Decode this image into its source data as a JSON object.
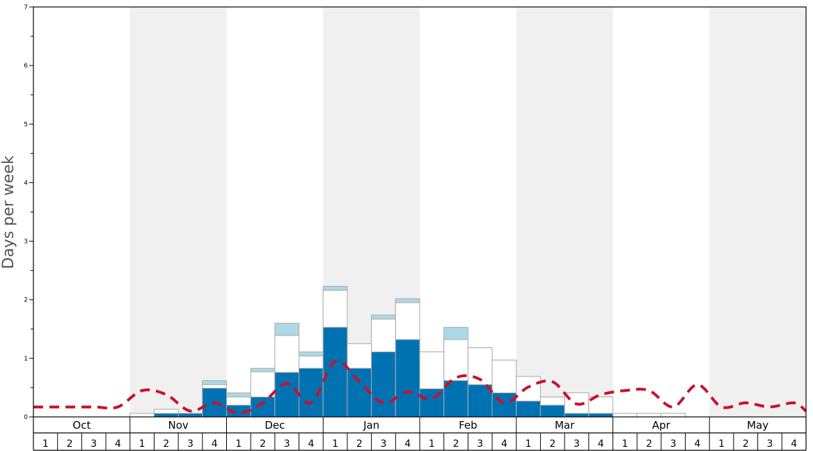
{
  "chart_data": {
    "type": "bar",
    "ylabel": "Days per week",
    "ylim": [
      0,
      7
    ],
    "y_ticks": [
      "0",
      "1",
      "2",
      "3",
      "4",
      "5",
      "6",
      "7"
    ],
    "months": [
      "Oct",
      "Nov",
      "Dec",
      "Jan",
      "Feb",
      "Mar",
      "Apr",
      "May"
    ],
    "weeks": [
      "1",
      "2",
      "3",
      "4"
    ],
    "series": [
      {
        "key": "dark",
        "values": [
          0,
          0,
          0,
          0,
          0,
          0.06,
          0.06,
          0.49,
          0.2,
          0.34,
          0.76,
          0.83,
          1.53,
          0.83,
          1.11,
          1.32,
          0.48,
          0.62,
          0.55,
          0.41,
          0.27,
          0.2,
          0.06,
          0.06,
          0,
          0,
          0,
          0,
          0,
          0,
          0,
          0
        ]
      },
      {
        "key": "white",
        "values": [
          0,
          0,
          0,
          0,
          0.06,
          0.13,
          0.06,
          0.55,
          0.34,
          0.77,
          1.39,
          1.04,
          2.16,
          1.25,
          1.67,
          1.95,
          1.11,
          1.32,
          1.18,
          0.97,
          0.69,
          0.34,
          0.41,
          0.34,
          0.06,
          0.06,
          0.06,
          0,
          0,
          0,
          0,
          0
        ]
      },
      {
        "key": "light",
        "values": [
          0,
          0,
          0,
          0,
          0.06,
          0.13,
          0.06,
          0.62,
          0.41,
          0.83,
          1.6,
          1.11,
          2.23,
          1.25,
          1.74,
          2.02,
          1.11,
          1.53,
          1.18,
          0.97,
          0.69,
          0.34,
          0.41,
          0.34,
          0.06,
          0.06,
          0.06,
          0,
          0,
          0,
          0,
          0
        ]
      },
      {
        "key": "dashed-line",
        "values": [
          0.17,
          0.17,
          0.17,
          0.17,
          0.45,
          0.38,
          0.1,
          0.24,
          0.06,
          0.24,
          0.57,
          0.24,
          0.95,
          0.6,
          0.24,
          0.43,
          0.31,
          0.67,
          0.64,
          0.24,
          0.51,
          0.6,
          0.22,
          0.38,
          0.45,
          0.45,
          0.17,
          0.55,
          0.17,
          0.24,
          0.17,
          0.24
        ]
      }
    ],
    "grid": false,
    "colors": {
      "dark": "#0072b2",
      "light": "#add8e6",
      "white": "#ffffff",
      "bar_stroke": "#aaaaaa",
      "line": "#c8102e",
      "shade": "#f0f0f0",
      "axis": "#000000"
    }
  }
}
